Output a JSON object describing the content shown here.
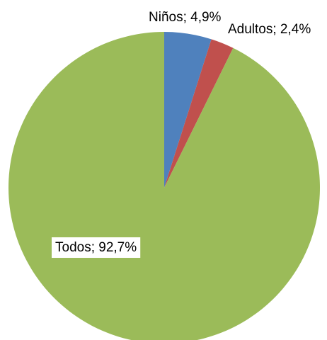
{
  "chart_data": {
    "type": "pie",
    "labels": [
      "Niños; 4,9%",
      "Adultos; 2,4%",
      "Todos; 92,7%"
    ],
    "values": [
      4.9,
      2.4,
      92.7
    ],
    "colors": [
      "#4f81bd",
      "#c0504d",
      "#9bbb59"
    ]
  }
}
